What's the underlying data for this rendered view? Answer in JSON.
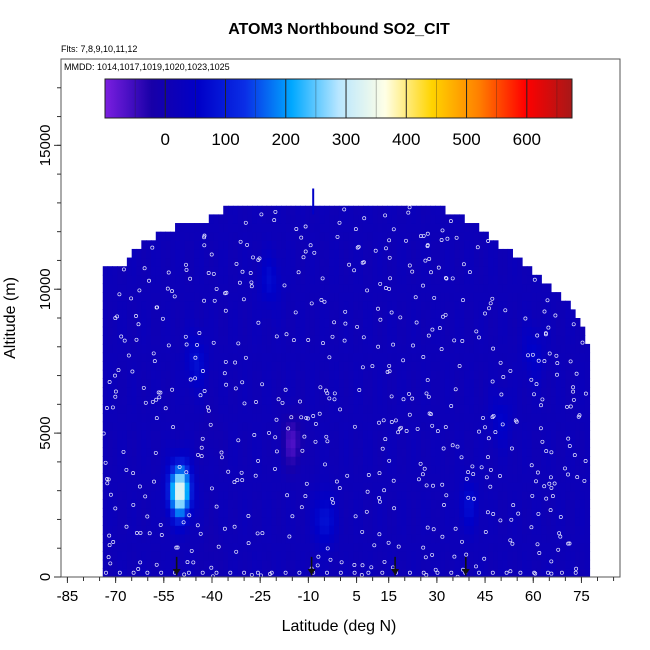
{
  "chart_data": {
    "type": "heatmap",
    "title": "ATOM3 Northbound SO2_CIT",
    "flights_note": "Flts: 7,8,9,10,11,12",
    "dates_note": "MMDD: 1014,1017,1019,1020,1023,1025",
    "xlabel": "Latitude (deg N)",
    "ylabel": "Altitude (m)",
    "xlim": [
      -87,
      87
    ],
    "ylim": [
      0,
      18000
    ],
    "x_ticks": [
      -85,
      -70,
      -55,
      -40,
      -25,
      -10,
      5,
      15,
      30,
      45,
      60,
      75
    ],
    "y_ticks": [
      0,
      5000,
      10000,
      15000
    ],
    "colorbar": {
      "ticks": [
        0,
        100,
        200,
        300,
        400,
        500,
        600
      ],
      "range": [
        -100,
        675
      ],
      "colors": [
        "#7b1fe0",
        "#1800a8",
        "#0000c8",
        "#0a2ee6",
        "#00a8ff",
        "#b8e6ff",
        "#ffffe6",
        "#ffd400",
        "#ff8000",
        "#ff0000",
        "#a81818"
      ]
    },
    "background_value": 15,
    "envelope": [
      {
        "lat": -74,
        "alt_top": 10500
      },
      {
        "lat": -67,
        "alt_top": 10800
      },
      {
        "lat": -60,
        "alt_top": 11600
      },
      {
        "lat": -52,
        "alt_top": 12000
      },
      {
        "lat": -42,
        "alt_top": 12200
      },
      {
        "lat": -32,
        "alt_top": 12900
      },
      {
        "lat": 26,
        "alt_top": 12900
      },
      {
        "lat": 40,
        "alt_top": 12200
      },
      {
        "lat": 52,
        "alt_top": 11200
      },
      {
        "lat": 62,
        "alt_top": 10200
      },
      {
        "lat": 72,
        "alt_top": 9300
      },
      {
        "lat": 77,
        "alt_top": 8000
      }
    ],
    "features": [
      {
        "lat": -50,
        "alt": 3000,
        "value": 350
      },
      {
        "lat": -40,
        "alt": 5000,
        "value": 0
      },
      {
        "lat": -15,
        "alt": 4700,
        "value": -60
      },
      {
        "lat": -45,
        "alt": 7500,
        "value": 80
      },
      {
        "lat": -22,
        "alt": 10300,
        "value": 70
      },
      {
        "lat": -5,
        "alt": 2000,
        "value": 90
      },
      {
        "lat": 40,
        "alt": 2500,
        "value": 70
      },
      {
        "lat": 50,
        "alt": 5500,
        "value": 60
      },
      {
        "lat": -40,
        "alt": 1000,
        "value": 0
      },
      {
        "lat": 60,
        "alt": 7800,
        "value": 60
      }
    ],
    "flight_markers_lat": [
      -51,
      -9,
      17,
      39
    ]
  }
}
